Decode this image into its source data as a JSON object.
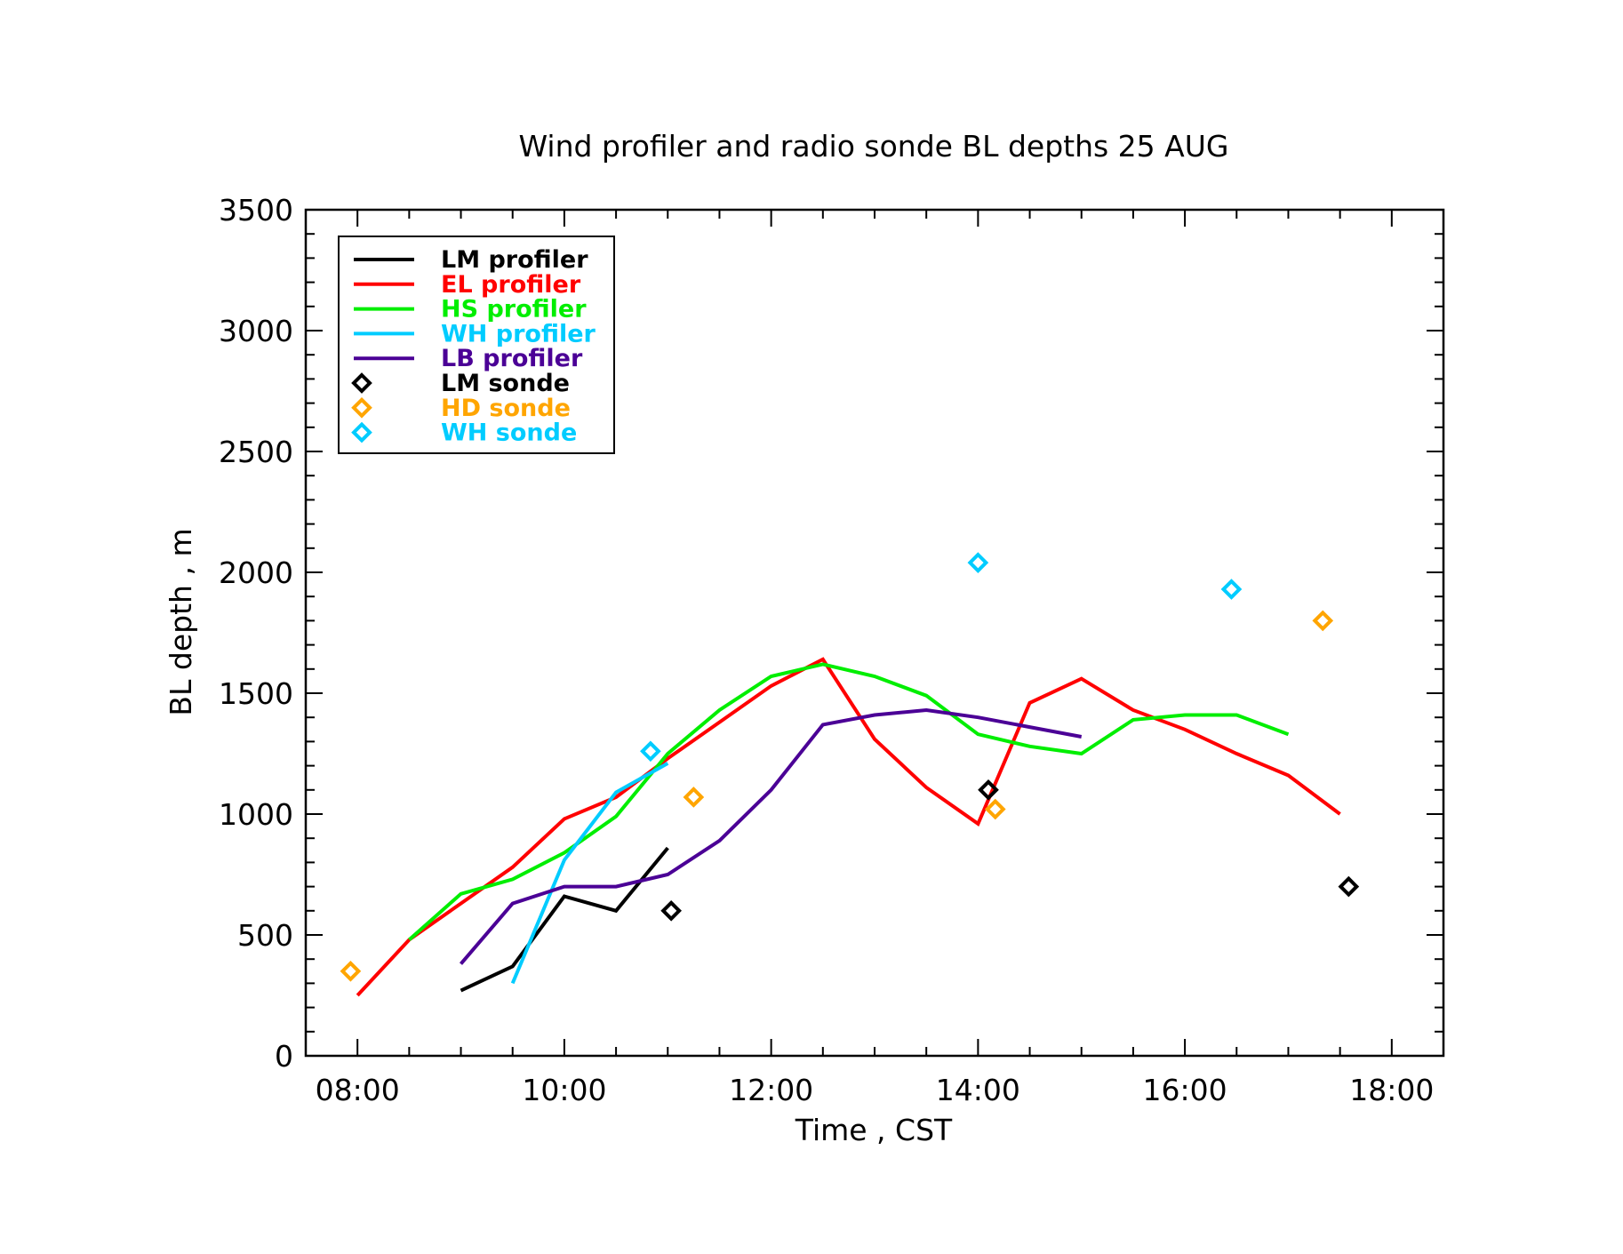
{
  "chart_data": {
    "type": "line",
    "title": "Wind profiler and radio sonde BL depths  25 AUG",
    "xlabel": "Time , CST",
    "ylabel": "BL depth , m",
    "xlim": [
      7.5,
      18.5
    ],
    "ylim": [
      0,
      3500
    ],
    "xticks": [
      8,
      10,
      12,
      14,
      16,
      18
    ],
    "xtick_labels": [
      "08:00",
      "10:00",
      "12:00",
      "14:00",
      "16:00",
      "18:00"
    ],
    "yticks": [
      0,
      500,
      1000,
      1500,
      2000,
      2500,
      3000,
      3500
    ],
    "ytick_labels": [
      "0",
      "500",
      "1000",
      "1500",
      "2000",
      "2500",
      "3000",
      "3500"
    ],
    "grid": false,
    "legend_position": "top-left",
    "series": [
      {
        "name": "LM profiler",
        "kind": "line",
        "color": "#000000",
        "x": [
          "09:00",
          "09:30",
          "10:00",
          "10:30",
          "11:00"
        ],
        "y": [
          270,
          370,
          660,
          600,
          860
        ]
      },
      {
        "name": "EL profiler",
        "kind": "line",
        "color": "#ff0000",
        "x": [
          "08:00",
          "08:30",
          "09:00",
          "09:30",
          "10:00",
          "10:30",
          "11:00",
          "11:30",
          "12:00",
          "12:30",
          "13:00",
          "13:30",
          "14:00",
          "14:30",
          "15:00",
          "15:30",
          "16:00",
          "16:30",
          "17:00",
          "17:30"
        ],
        "y": [
          250,
          480,
          630,
          780,
          980,
          1070,
          1230,
          1380,
          1530,
          1640,
          1310,
          1110,
          960,
          1460,
          1560,
          1430,
          1350,
          1250,
          1160,
          1000
        ]
      },
      {
        "name": "HS profiler",
        "kind": "line",
        "color": "#00ee00",
        "x": [
          "08:30",
          "09:00",
          "09:30",
          "10:00",
          "10:30",
          "11:00",
          "11:30",
          "12:00",
          "12:30",
          "13:00",
          "13:30",
          "14:00",
          "14:30",
          "15:00",
          "15:30",
          "16:00",
          "16:30",
          "17:00"
        ],
        "y": [
          480,
          670,
          730,
          840,
          990,
          1250,
          1430,
          1570,
          1620,
          1570,
          1490,
          1330,
          1280,
          1250,
          1390,
          1410,
          1410,
          1330
        ]
      },
      {
        "name": "WH profiler",
        "kind": "line",
        "color": "#00ccff",
        "x": [
          "09:30",
          "10:00",
          "10:30",
          "11:00"
        ],
        "y": [
          300,
          810,
          1090,
          1210
        ]
      },
      {
        "name": "LB profiler",
        "kind": "line",
        "color": "#4b0096",
        "x": [
          "09:00",
          "09:30",
          "10:00",
          "10:30",
          "11:00",
          "11:30",
          "12:00",
          "12:30",
          "13:00",
          "13:30",
          "14:00",
          "14:30",
          "15:00"
        ],
        "y": [
          380,
          630,
          700,
          700,
          750,
          890,
          1100,
          1370,
          1410,
          1430,
          1400,
          1360,
          1320
        ]
      },
      {
        "name": "LM sonde",
        "kind": "marker",
        "color": "#000000",
        "x": [
          "11:02",
          "14:06",
          "17:35"
        ],
        "y": [
          600,
          1100,
          700
        ]
      },
      {
        "name": "HD sonde",
        "kind": "marker",
        "color": "#ffa500",
        "x": [
          "07:56",
          "11:15",
          "14:10",
          "17:20"
        ],
        "y": [
          350,
          1070,
          1020,
          1800
        ]
      },
      {
        "name": "WH sonde",
        "kind": "marker",
        "color": "#00ccff",
        "x": [
          "10:50",
          "14:00",
          "16:27"
        ],
        "y": [
          1260,
          2040,
          1930
        ]
      }
    ]
  }
}
